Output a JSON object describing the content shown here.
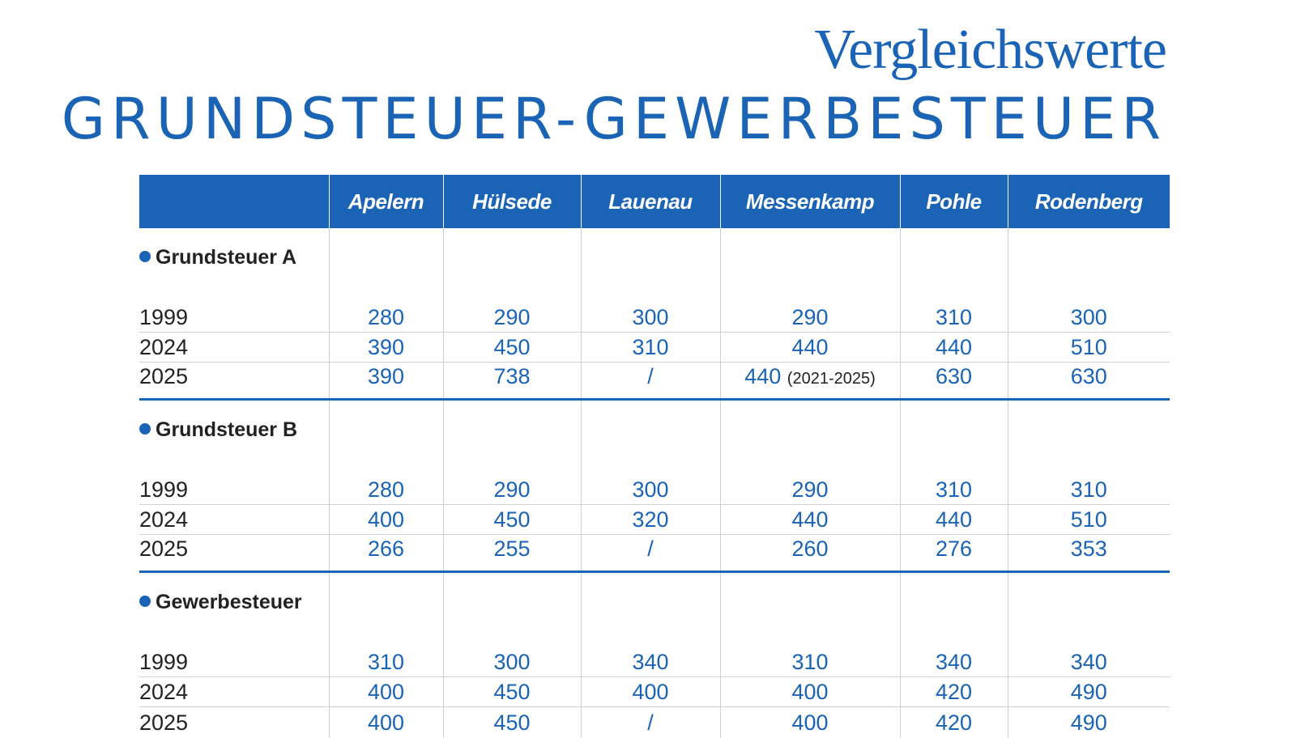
{
  "subtitle": "Vergleichswerte",
  "title": "GRUNDSTEUER-GEWERBESTEUER",
  "columns": [
    "Apelern",
    "Hülsede",
    "Lauenau",
    "Messenkamp",
    "Pohle",
    "Rodenberg"
  ],
  "sections": [
    {
      "label": "Grundsteuer A",
      "rows": [
        {
          "year": "1999",
          "values": [
            "280",
            "290",
            "300",
            "290",
            "310",
            "300"
          ]
        },
        {
          "year": "2024",
          "values": [
            "390",
            "450",
            "310",
            "440",
            "440",
            "510"
          ]
        },
        {
          "year": "2025",
          "values": [
            "390",
            "738",
            "/",
            "440",
            "630",
            "630"
          ],
          "note_messenkamp": "(2021-2025)"
        }
      ]
    },
    {
      "label": "Grundsteuer B",
      "rows": [
        {
          "year": "1999",
          "values": [
            "280",
            "290",
            "300",
            "290",
            "310",
            "310"
          ]
        },
        {
          "year": "2024",
          "values": [
            "400",
            "450",
            "320",
            "440",
            "440",
            "510"
          ]
        },
        {
          "year": "2025",
          "values": [
            "266",
            "255",
            "/",
            "260",
            "276",
            "353"
          ]
        }
      ]
    },
    {
      "label": "Gewerbesteuer",
      "rows": [
        {
          "year": "1999",
          "values": [
            "310",
            "300",
            "340",
            "310",
            "340",
            "340"
          ]
        },
        {
          "year": "2024",
          "values": [
            "400",
            "450",
            "400",
            "400",
            "420",
            "490"
          ]
        },
        {
          "year": "2025",
          "values": [
            "400",
            "450",
            "/",
            "400",
            "420",
            "490"
          ]
        }
      ]
    }
  ],
  "colors": {
    "accent": "#1a63b5",
    "text": "#222222",
    "grid": "#cfcfcf"
  }
}
